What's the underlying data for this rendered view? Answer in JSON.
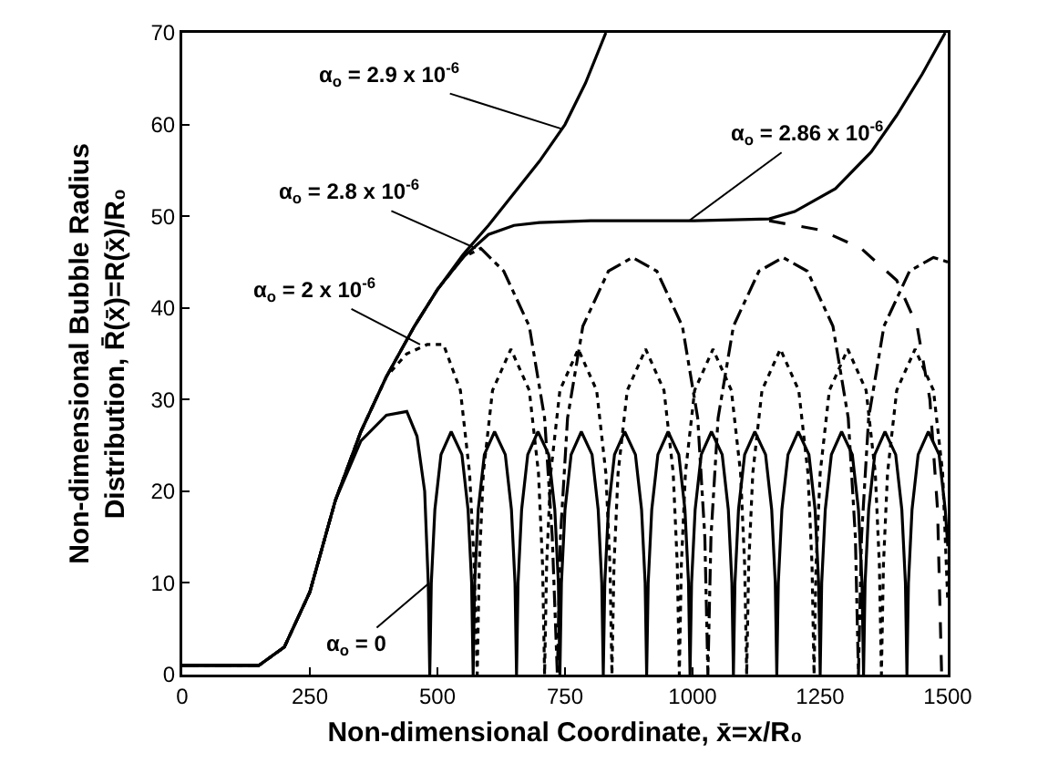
{
  "chart_data": {
    "type": "line",
    "xlabel": "Non-dimensional Coordinate, x̄=x/R₀",
    "ylabel": "Non-dimensional Bubble Radius\nDistribution, R̄(x̄)=R(x̄)/R₀",
    "xlim": [
      0,
      1500
    ],
    "xticks": [
      0,
      250,
      500,
      750,
      1000,
      1250,
      1500
    ],
    "ylim": [
      0,
      70
    ],
    "yticks": [
      0,
      10,
      20,
      30,
      40,
      50,
      60,
      70
    ],
    "grid": false,
    "marker": "none",
    "series": [
      {
        "color": "#000000",
        "line_style": "solid",
        "x": [
          0,
          150,
          200,
          250,
          300,
          350,
          400,
          440,
          460,
          475,
          482,
          485,
          488,
          495,
          507,
          527,
          548,
          560,
          567,
          570,
          573,
          580,
          592,
          612,
          633,
          645,
          652,
          655,
          658,
          665,
          677,
          697,
          718,
          730,
          737,
          740,
          743,
          750,
          762,
          782,
          803,
          815,
          822,
          825,
          828,
          835,
          847,
          867,
          888,
          900,
          907,
          910,
          913,
          920,
          932,
          952,
          973,
          985,
          992,
          995,
          998,
          1005,
          1017,
          1037,
          1058,
          1070,
          1077,
          1080,
          1083,
          1090,
          1102,
          1122,
          1143,
          1155,
          1162,
          1165,
          1168,
          1175,
          1187,
          1207,
          1228,
          1240,
          1247,
          1250,
          1253,
          1260,
          1272,
          1292,
          1313,
          1325,
          1332,
          1335,
          1338,
          1345,
          1357,
          1377,
          1398,
          1410,
          1417,
          1420,
          1423,
          1430,
          1442,
          1462,
          1483,
          1495,
          1500
        ],
        "values": [
          1,
          1,
          3,
          9,
          19,
          25.5,
          28.3,
          28.7,
          26,
          20,
          10,
          0,
          10,
          18,
          24,
          26.5,
          24,
          18,
          10,
          0,
          10,
          18,
          24,
          26.5,
          24,
          18,
          10,
          0,
          10,
          18,
          24,
          26.5,
          24,
          18,
          10,
          0,
          10,
          18,
          24,
          26.5,
          24,
          18,
          10,
          0,
          10,
          18,
          24,
          26.5,
          24,
          18,
          10,
          0,
          10,
          18,
          24,
          26.5,
          24,
          18,
          10,
          0,
          10,
          18,
          24,
          26.5,
          24,
          18,
          10,
          0,
          10,
          18,
          24,
          26.5,
          24,
          18,
          10,
          0,
          10,
          18,
          24,
          26.5,
          24,
          18,
          10,
          0,
          10,
          18,
          24,
          26.5,
          24,
          18,
          10,
          0,
          10,
          18,
          24,
          26.5,
          24,
          18,
          10,
          0,
          10,
          18,
          24,
          26.5,
          24,
          18,
          14
        ]
      },
      {
        "color": "#000000",
        "line_style": "dotted",
        "x": [
          0,
          150,
          200,
          250,
          300,
          350,
          400,
          440,
          480,
          512,
          545,
          563,
          572,
          578,
          582,
          590,
          608,
          644,
          680,
          698,
          706,
          710,
          714,
          722,
          740,
          776,
          812,
          830,
          838,
          842,
          846,
          854,
          872,
          908,
          944,
          962,
          970,
          974,
          978,
          986,
          1004,
          1040,
          1076,
          1094,
          1102,
          1106,
          1110,
          1118,
          1136,
          1172,
          1208,
          1226,
          1234,
          1238,
          1242,
          1250,
          1268,
          1304,
          1340,
          1358,
          1366,
          1370,
          1374,
          1382,
          1400,
          1436,
          1472,
          1490,
          1500
        ],
        "values": [
          1,
          1,
          3,
          9,
          19,
          26.5,
          32.5,
          35,
          36,
          36,
          31,
          22,
          12,
          0,
          12,
          22,
          31,
          35.5,
          31,
          22,
          12,
          0,
          12,
          22,
          31,
          35.5,
          31,
          22,
          12,
          0,
          12,
          22,
          31,
          35.5,
          31,
          22,
          12,
          0,
          12,
          22,
          31,
          35.5,
          31,
          22,
          12,
          0,
          12,
          22,
          31,
          35.5,
          31,
          22,
          12,
          0,
          12,
          22,
          31,
          35.5,
          31,
          22,
          12,
          0,
          12,
          22,
          31,
          35.5,
          31,
          22,
          8
        ]
      },
      {
        "color": "#000000",
        "line_style": "dashdot",
        "x": [
          0,
          150,
          200,
          250,
          300,
          350,
          400,
          455,
          500,
          550,
          585,
          630,
          680,
          710,
          725,
          735,
          741,
          755,
          785,
          835,
          882,
          930,
          980,
          1010,
          1024,
          1030,
          1036,
          1050,
          1080,
          1130,
          1177,
          1225,
          1275,
          1305,
          1319,
          1325,
          1331,
          1345,
          1375,
          1425,
          1472,
          1500
        ],
        "values": [
          1,
          1,
          3,
          9,
          19,
          26.5,
          32.5,
          38,
          42,
          45.5,
          46.5,
          44,
          38,
          28,
          15,
          0,
          15,
          28,
          38,
          44,
          45.5,
          44,
          38,
          28,
          15,
          0,
          15,
          28,
          38,
          44,
          45.5,
          44,
          38,
          28,
          15,
          0,
          15,
          28,
          38,
          44,
          45.5,
          45
        ]
      },
      {
        "color": "#000000",
        "line_style": "dashed",
        "x": [
          1150,
          1250,
          1330,
          1400,
          1440,
          1465,
          1480,
          1488
        ],
        "values": [
          49.5,
          48.5,
          46.5,
          43,
          38,
          30,
          18,
          0
        ]
      },
      {
        "color": "#000000",
        "line_style": "solid",
        "x": [
          0,
          150,
          200,
          250,
          300,
          350,
          400,
          455,
          500,
          550,
          600,
          650,
          700,
          800,
          1000,
          1150,
          1200,
          1280,
          1350,
          1400,
          1450,
          1495
        ],
        "values": [
          1,
          1,
          3,
          9,
          19,
          26.5,
          32.5,
          38,
          42,
          45.5,
          48,
          49,
          49.3,
          49.5,
          49.5,
          49.7,
          50.5,
          53,
          57,
          61,
          65.5,
          70
        ]
      },
      {
        "color": "#000000",
        "line_style": "solid",
        "x": [
          0,
          150,
          200,
          250,
          300,
          350,
          400,
          455,
          500,
          550,
          600,
          650,
          700,
          750,
          790,
          830
        ],
        "values": [
          1,
          1,
          3,
          9,
          19,
          26.5,
          32.5,
          38,
          42,
          45.8,
          49,
          52.5,
          56,
          60,
          64.5,
          70
        ]
      }
    ],
    "annotations": [
      {
        "text": "α$_{o}$ = 2.9 x 10$^{-6}$",
        "x": 745,
        "y": 59.5
      },
      {
        "text": "α$_{o}$ = 2.86 x 10$^{-6}$",
        "x": 993,
        "y": 49.5
      },
      {
        "text": "α$_{o}$ = 2.8 x 10$^{-6}$",
        "x": 575,
        "y": 46.5
      },
      {
        "text": "α$_{o}$ = 2 x 10$^{-6}$",
        "x": 466,
        "y": 36
      },
      {
        "text": "α$_{o}$ = 0",
        "x": 484,
        "y": 10
      }
    ]
  }
}
